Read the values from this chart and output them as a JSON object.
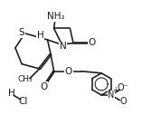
{
  "bg_color": "#ffffff",
  "line_color": "#1a1a1a",
  "line_width": 1.15,
  "figsize": [
    1.78,
    1.27
  ],
  "dpi": 100,
  "xlim": [
    0,
    10
  ],
  "ylim": [
    0,
    7.1
  ],
  "font_size_atom": 7.5,
  "font_size_small": 6.5
}
